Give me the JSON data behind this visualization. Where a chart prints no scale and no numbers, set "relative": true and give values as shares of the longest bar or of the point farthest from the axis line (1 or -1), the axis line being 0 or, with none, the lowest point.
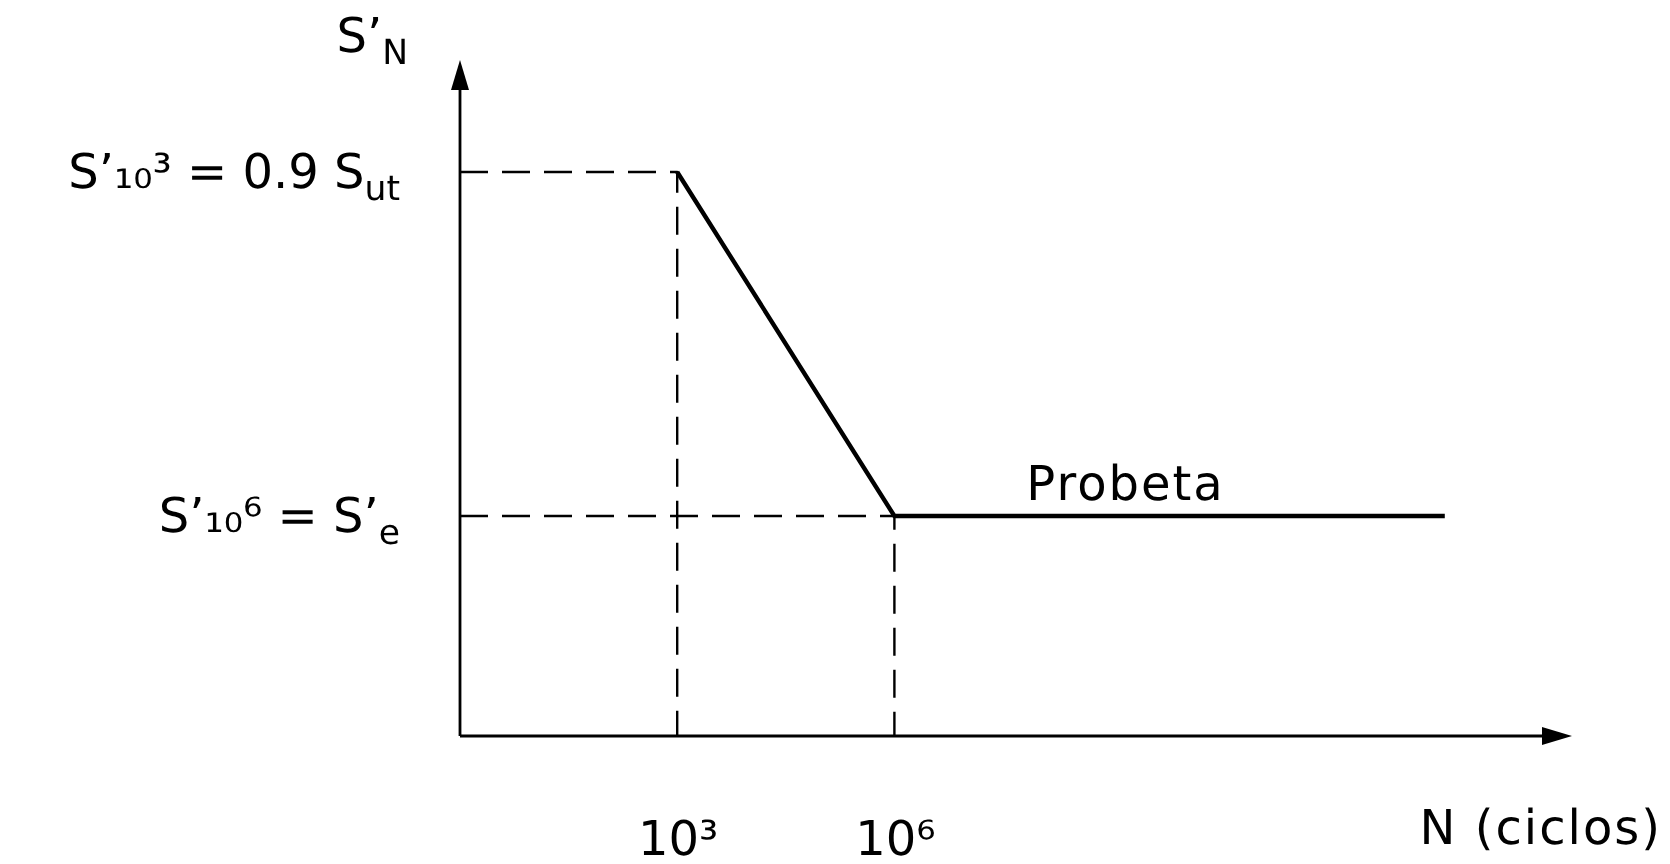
{
  "chart_data": {
    "type": "line",
    "xlabel": "N (ciclos)",
    "ylabel": "S’$_{N}$",
    "log": "x",
    "relative": true,
    "xlim": [
      1,
      1000000000000000
    ],
    "xticks": [
      {
        "value": 1000,
        "label": "10³"
      },
      {
        "value": 1000000,
        "label": "10⁶"
      }
    ],
    "series": [
      {
        "name": "Probeta",
        "color": "#000000",
        "x": [
          1000,
          1000000,
          40000000000000
        ],
        "values": [
          1,
          0.39,
          0.39
        ]
      },
      {
        "color": "#000000",
        "line_style": "dashed",
        "x": [
          1,
          1000,
          1000
        ],
        "values": [
          1,
          1,
          0
        ]
      },
      {
        "color": "#000000",
        "line_style": "dashed",
        "x": [
          1,
          1000000,
          1000000
        ],
        "values": [
          0.39,
          0.39,
          0
        ]
      }
    ],
    "annotations": [
      {
        "text": "S’₁₀³ = 0.9 S$_{ut}$",
        "x": 1,
        "y": 1
      },
      {
        "text": "S’₁₀⁶ = S’$_{e}$",
        "x": 1,
        "y": 0.39
      }
    ]
  }
}
